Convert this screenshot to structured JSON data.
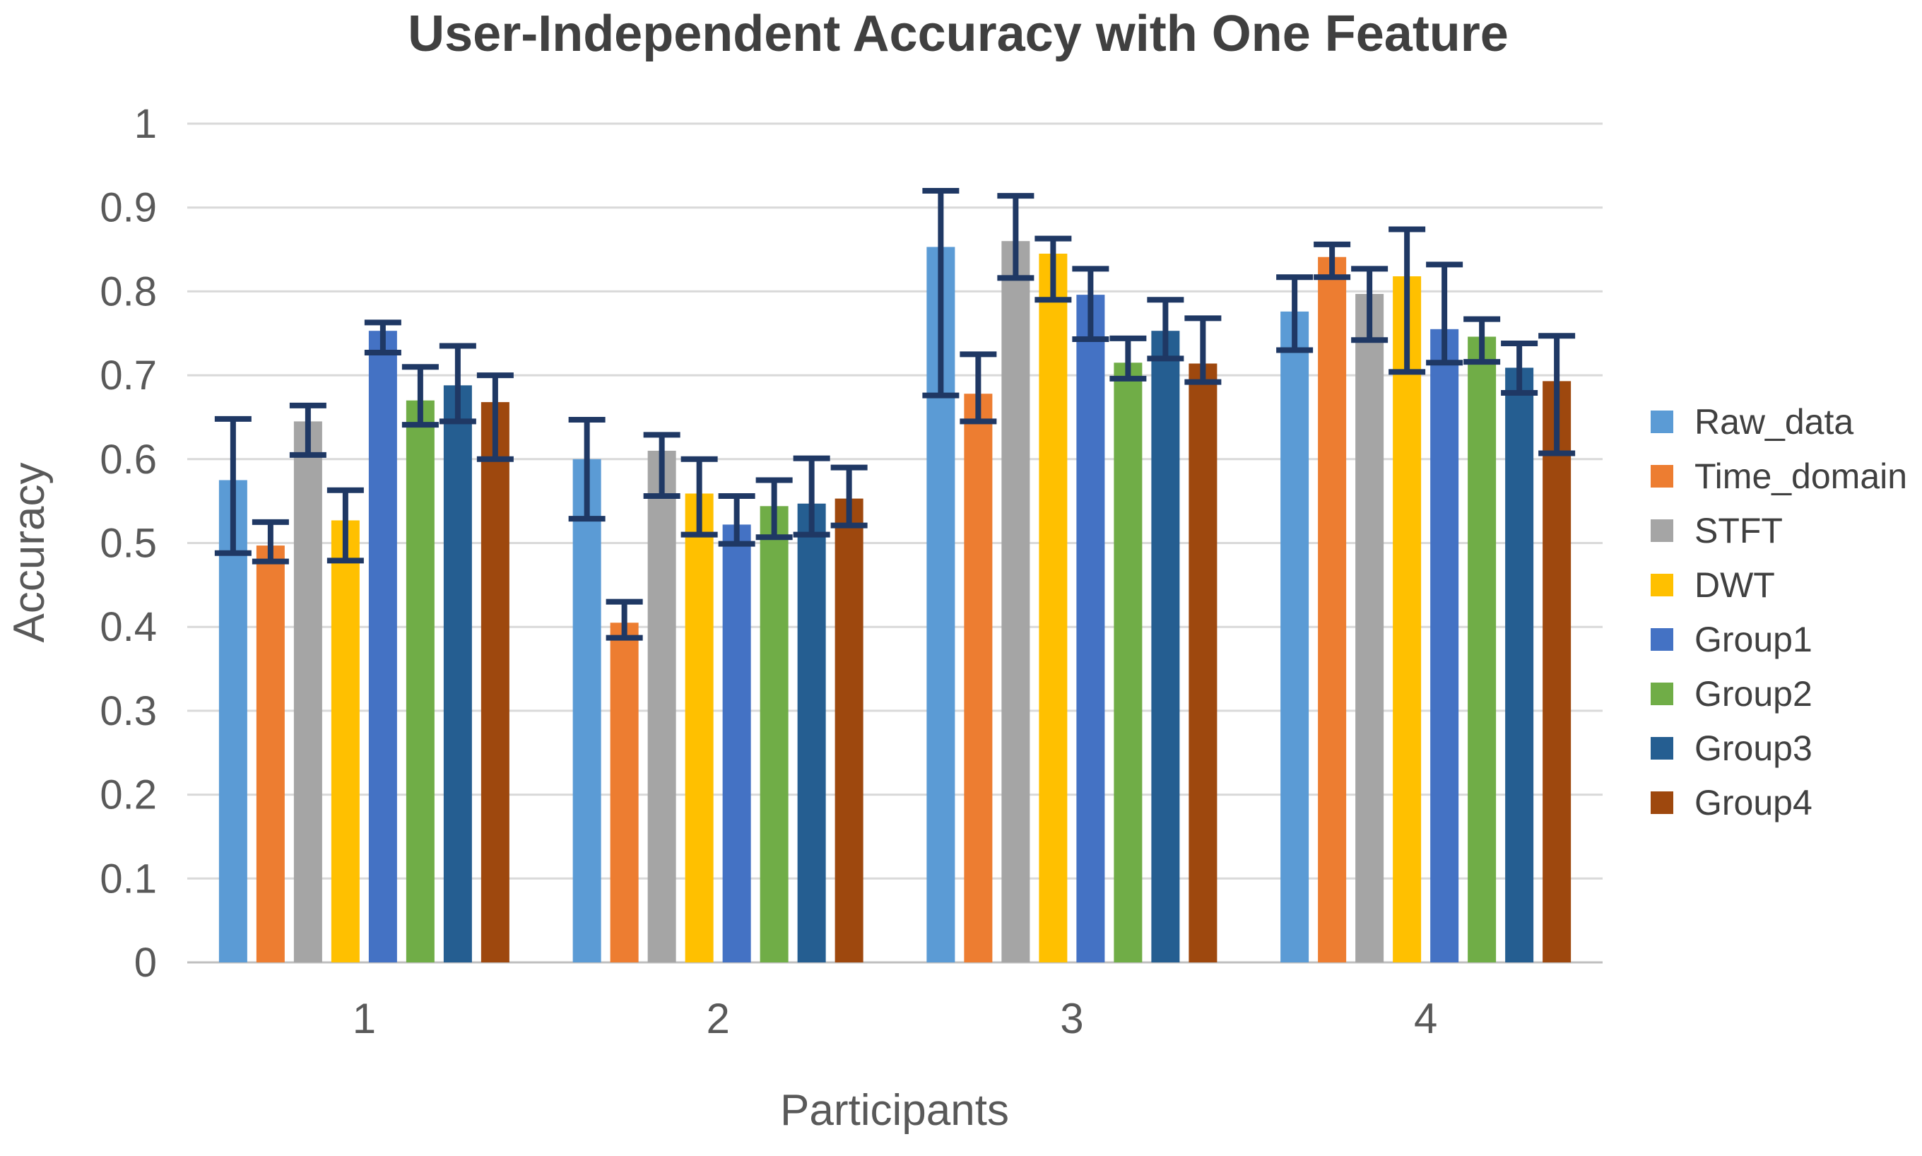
{
  "colors": {
    "background": "#FFFFFF",
    "title_text": "#404040",
    "axis_text": "#595959",
    "gridline": "#D9D9D9",
    "baseline": "#BFBFBF",
    "error_bar": "#1F3864"
  },
  "chart_data": {
    "type": "bar",
    "title": "User-Independent Accuracy with One Feature",
    "xlabel": "Participants",
    "ylabel": "Accuracy",
    "categories": [
      "1",
      "2",
      "3",
      "4"
    ],
    "ylim": [
      0,
      1
    ],
    "yticks": [
      0,
      0.1,
      0.2,
      0.3,
      0.4,
      0.5,
      0.6,
      0.7,
      0.8,
      0.9,
      1
    ],
    "ytick_labels": [
      "0",
      "0.1",
      "0.2",
      "0.3",
      "0.4",
      "0.5",
      "0.6",
      "0.7",
      "0.8",
      "0.9",
      "1"
    ],
    "grid": true,
    "legend_position": "right",
    "error_bars": true,
    "series": [
      {
        "name": "Raw_data",
        "color": "#5B9BD5",
        "values": [
          0.575,
          0.6,
          0.853,
          0.776
        ],
        "err_lo": [
          0.488,
          0.529,
          0.676,
          0.73
        ],
        "err_hi": [
          0.648,
          0.647,
          0.92,
          0.817
        ]
      },
      {
        "name": "Time_domain",
        "color": "#ED7D31",
        "values": [
          0.497,
          0.405,
          0.678,
          0.841
        ],
        "err_lo": [
          0.478,
          0.387,
          0.645,
          0.817
        ],
        "err_hi": [
          0.525,
          0.43,
          0.725,
          0.856
        ]
      },
      {
        "name": "STFT",
        "color": "#A5A5A5",
        "values": [
          0.645,
          0.61,
          0.86,
          0.797
        ],
        "err_lo": [
          0.605,
          0.556,
          0.816,
          0.742
        ],
        "err_hi": [
          0.664,
          0.629,
          0.914,
          0.827
        ]
      },
      {
        "name": "DWT",
        "color": "#FFC000",
        "values": [
          0.527,
          0.559,
          0.845,
          0.818
        ],
        "err_lo": [
          0.479,
          0.51,
          0.79,
          0.704
        ],
        "err_hi": [
          0.563,
          0.6,
          0.863,
          0.874
        ]
      },
      {
        "name": "Group1",
        "color": "#4472C4",
        "values": [
          0.753,
          0.522,
          0.796,
          0.755
        ],
        "err_lo": [
          0.727,
          0.499,
          0.743,
          0.715
        ],
        "err_hi": [
          0.763,
          0.556,
          0.827,
          0.832
        ]
      },
      {
        "name": "Group2",
        "color": "#70AD47",
        "values": [
          0.67,
          0.544,
          0.715,
          0.746
        ],
        "err_lo": [
          0.641,
          0.507,
          0.696,
          0.716
        ],
        "err_hi": [
          0.71,
          0.575,
          0.744,
          0.767
        ]
      },
      {
        "name": "Group3",
        "color": "#255E91",
        "values": [
          0.688,
          0.547,
          0.753,
          0.709
        ],
        "err_lo": [
          0.645,
          0.51,
          0.72,
          0.679
        ],
        "err_hi": [
          0.735,
          0.601,
          0.79,
          0.738
        ]
      },
      {
        "name": "Group4",
        "color": "#9E480E",
        "values": [
          0.668,
          0.553,
          0.714,
          0.693
        ],
        "err_lo": [
          0.6,
          0.521,
          0.692,
          0.607
        ],
        "err_hi": [
          0.7,
          0.59,
          0.768,
          0.747
        ]
      }
    ]
  }
}
